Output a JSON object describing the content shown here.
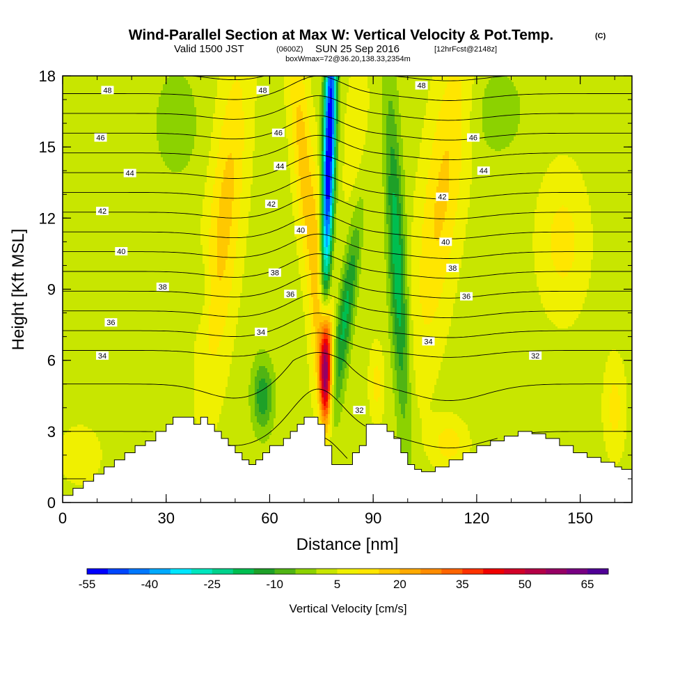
{
  "title": {
    "main": "Wind-Parallel Section at Max W: Vertical Velocity & Pot.Temp.",
    "copyright": "(C)",
    "valid_a": "Valid 1500 JST",
    "valid_utc": "(0600Z)",
    "valid_b": "SUN 25 Sep 2016",
    "forecast": "[12hrFcst@2148z]",
    "box": "boxWmax=72@36.20,138.33,2354m"
  },
  "chart_data": {
    "type": "heatmap",
    "xlabel": "Distance [nm]",
    "ylabel": "Height [Kft MSL]",
    "xlim": [
      0,
      165
    ],
    "ylim": [
      0,
      18
    ],
    "x_ticks": [
      0,
      30,
      60,
      90,
      120,
      150
    ],
    "y_ticks": [
      0,
      3,
      6,
      9,
      12,
      15,
      18
    ],
    "colorbar": {
      "label": "Vertical Velocity [cm/s]",
      "tick_labels": [
        "-55",
        "-40",
        "-25",
        "-10",
        "5",
        "20",
        "35",
        "50",
        "65"
      ],
      "tick_values": [
        -55,
        -40,
        -25,
        -10,
        5,
        20,
        35,
        50,
        65
      ],
      "min": -55,
      "max": 70,
      "step": 5,
      "colors": [
        "#0000ff",
        "#0046ff",
        "#0078ff",
        "#00aaff",
        "#00e6ff",
        "#00e6be",
        "#00d28c",
        "#00be50",
        "#1ea028",
        "#50b414",
        "#8cd200",
        "#c8e600",
        "#f0f000",
        "#ffe600",
        "#ffc800",
        "#ffaa00",
        "#ff8c00",
        "#ff6400",
        "#ff3200",
        "#f00000",
        "#d20028",
        "#b40046",
        "#960064",
        "#780082",
        "#500096"
      ]
    },
    "vertical_velocity_field": {
      "background": 3,
      "features": [
        {
          "x": 76,
          "z": 5.6,
          "sx": 1.8,
          "sz": 2.4,
          "tilt": 0,
          "amp": 60
        },
        {
          "x": 75.5,
          "z": 8.5,
          "sx": 2.8,
          "sz": 5,
          "tilt": 0,
          "amp": 22
        },
        {
          "x": 70,
          "z": 14,
          "sx": 3,
          "sz": 6,
          "tilt": -0.55,
          "amp": 15
        },
        {
          "x": 77,
          "z": 14,
          "sx": 1.8,
          "sz": 8,
          "tilt": 0.2,
          "amp": -65
        },
        {
          "x": 82,
          "z": 8,
          "sx": 2.5,
          "sz": 5,
          "tilt": 0.9,
          "amp": -20
        },
        {
          "x": 97,
          "z": 10,
          "sx": 2.5,
          "sz": 7,
          "tilt": -0.3,
          "amp": -22
        },
        {
          "x": 86,
          "z": 14,
          "sx": 5,
          "sz": 5,
          "tilt": 0,
          "amp": 5
        },
        {
          "x": 47,
          "z": 12,
          "sx": 5,
          "sz": 7,
          "tilt": 0.6,
          "amp": 14
        },
        {
          "x": 110,
          "z": 13,
          "sx": 6,
          "sz": 7,
          "tilt": 0.8,
          "amp": 13
        },
        {
          "x": 145,
          "z": 11,
          "sx": 7,
          "sz": 3,
          "tilt": 0,
          "amp": 9
        },
        {
          "x": 58,
          "z": 4.5,
          "sx": 3,
          "sz": 1.5,
          "tilt": 0,
          "amp": -17
        },
        {
          "x": 40,
          "z": 9,
          "sx": 3,
          "sz": 1.5,
          "tilt": 0,
          "amp": -5
        },
        {
          "x": 33,
          "z": 16,
          "sx": 7,
          "sz": 2.5,
          "tilt": 0,
          "amp": -6
        },
        {
          "x": 126,
          "z": 16.5,
          "sx": 8,
          "sz": 2,
          "tilt": 0,
          "amp": -6
        },
        {
          "x": 112,
          "z": 2.5,
          "sx": 5,
          "sz": 1,
          "tilt": 0,
          "amp": 10
        },
        {
          "x": 91,
          "z": 5,
          "sx": 2,
          "sz": 1.5,
          "tilt": 0,
          "amp": 9
        },
        {
          "x": 160,
          "z": 4,
          "sx": 3,
          "sz": 2,
          "tilt": 0,
          "amp": 9
        },
        {
          "x": 5,
          "z": 2,
          "sx": 6,
          "sz": 1.2,
          "tilt": 0,
          "amp": 6
        }
      ]
    },
    "terrain_kft": [
      [
        0,
        0.3
      ],
      [
        3,
        0.6
      ],
      [
        6,
        0.9
      ],
      [
        9,
        1.2
      ],
      [
        12,
        1.5
      ],
      [
        15,
        1.8
      ],
      [
        18,
        2.1
      ],
      [
        21,
        2.4
      ],
      [
        24,
        2.6
      ],
      [
        27,
        3
      ],
      [
        30,
        3.3
      ],
      [
        32,
        3.6
      ],
      [
        36,
        3.6
      ],
      [
        38,
        3.3
      ],
      [
        40,
        3.6
      ],
      [
        42,
        3.3
      ],
      [
        44,
        3
      ],
      [
        46,
        2.7
      ],
      [
        48,
        2.4
      ],
      [
        50,
        2.1
      ],
      [
        52,
        1.8
      ],
      [
        54,
        1.6
      ],
      [
        56,
        1.8
      ],
      [
        58,
        2.1
      ],
      [
        60,
        2.4
      ],
      [
        62,
        2.4
      ],
      [
        64,
        2.7
      ],
      [
        66,
        3
      ],
      [
        68,
        3.3
      ],
      [
        70,
        3.6
      ],
      [
        72,
        3.6
      ],
      [
        74,
        3.3
      ],
      [
        76,
        2.4
      ],
      [
        78,
        1.6
      ],
      [
        80,
        1.6
      ],
      [
        82,
        1.6
      ],
      [
        84,
        2.1
      ],
      [
        86,
        2.4
      ],
      [
        88,
        3.3
      ],
      [
        92,
        3.3
      ],
      [
        94,
        3
      ],
      [
        96,
        2.7
      ],
      [
        98,
        2.1
      ],
      [
        100,
        1.6
      ],
      [
        102,
        1.4
      ],
      [
        104,
        1.3
      ],
      [
        108,
        1.5
      ],
      [
        112,
        1.8
      ],
      [
        116,
        2.1
      ],
      [
        120,
        2.4
      ],
      [
        124,
        2.6
      ],
      [
        128,
        2.8
      ],
      [
        132,
        3
      ],
      [
        136,
        2.9
      ],
      [
        140,
        2.7
      ],
      [
        144,
        2.4
      ],
      [
        148,
        2.1
      ],
      [
        152,
        1.9
      ],
      [
        156,
        1.7
      ],
      [
        160,
        1.5
      ],
      [
        162,
        1.4
      ],
      [
        165,
        1.3
      ]
    ],
    "potential_temperature": {
      "levels": [
        31,
        32,
        33,
        34,
        35,
        36,
        37,
        38,
        39,
        40,
        41,
        42,
        43,
        44,
        45,
        46,
        47,
        48,
        49,
        50
      ],
      "contour_labels": [
        {
          "text": "48",
          "x": 13,
          "z": 17.4
        },
        {
          "text": "46",
          "x": 11,
          "z": 15.4
        },
        {
          "text": "44",
          "x": 19.5,
          "z": 13.9
        },
        {
          "text": "42",
          "x": 11.5,
          "z": 12.3
        },
        {
          "text": "40",
          "x": 17,
          "z": 10.6
        },
        {
          "text": "38",
          "x": 29,
          "z": 9.1
        },
        {
          "text": "36",
          "x": 14,
          "z": 7.6
        },
        {
          "text": "34",
          "x": 11.5,
          "z": 6.2
        },
        {
          "text": "48",
          "x": 58,
          "z": 17.4
        },
        {
          "text": "46",
          "x": 62.5,
          "z": 15.6
        },
        {
          "text": "44",
          "x": 63,
          "z": 14.2
        },
        {
          "text": "42",
          "x": 60.5,
          "z": 12.6
        },
        {
          "text": "40",
          "x": 69,
          "z": 11.5
        },
        {
          "text": "38",
          "x": 61.5,
          "z": 9.7
        },
        {
          "text": "36",
          "x": 66,
          "z": 8.8
        },
        {
          "text": "34",
          "x": 57.5,
          "z": 7.2
        },
        {
          "text": "48",
          "x": 104,
          "z": 17.6
        },
        {
          "text": "46",
          "x": 119,
          "z": 15.4
        },
        {
          "text": "44",
          "x": 122,
          "z": 14
        },
        {
          "text": "42",
          "x": 110,
          "z": 12.9
        },
        {
          "text": "40",
          "x": 111,
          "z": 11
        },
        {
          "text": "38",
          "x": 113,
          "z": 9.9
        },
        {
          "text": "36",
          "x": 117,
          "z": 8.7
        },
        {
          "text": "34",
          "x": 106,
          "z": 6.8
        },
        {
          "text": "32",
          "x": 137,
          "z": 6.2
        },
        {
          "text": "32",
          "x": 86,
          "z": 3.9
        }
      ]
    }
  }
}
